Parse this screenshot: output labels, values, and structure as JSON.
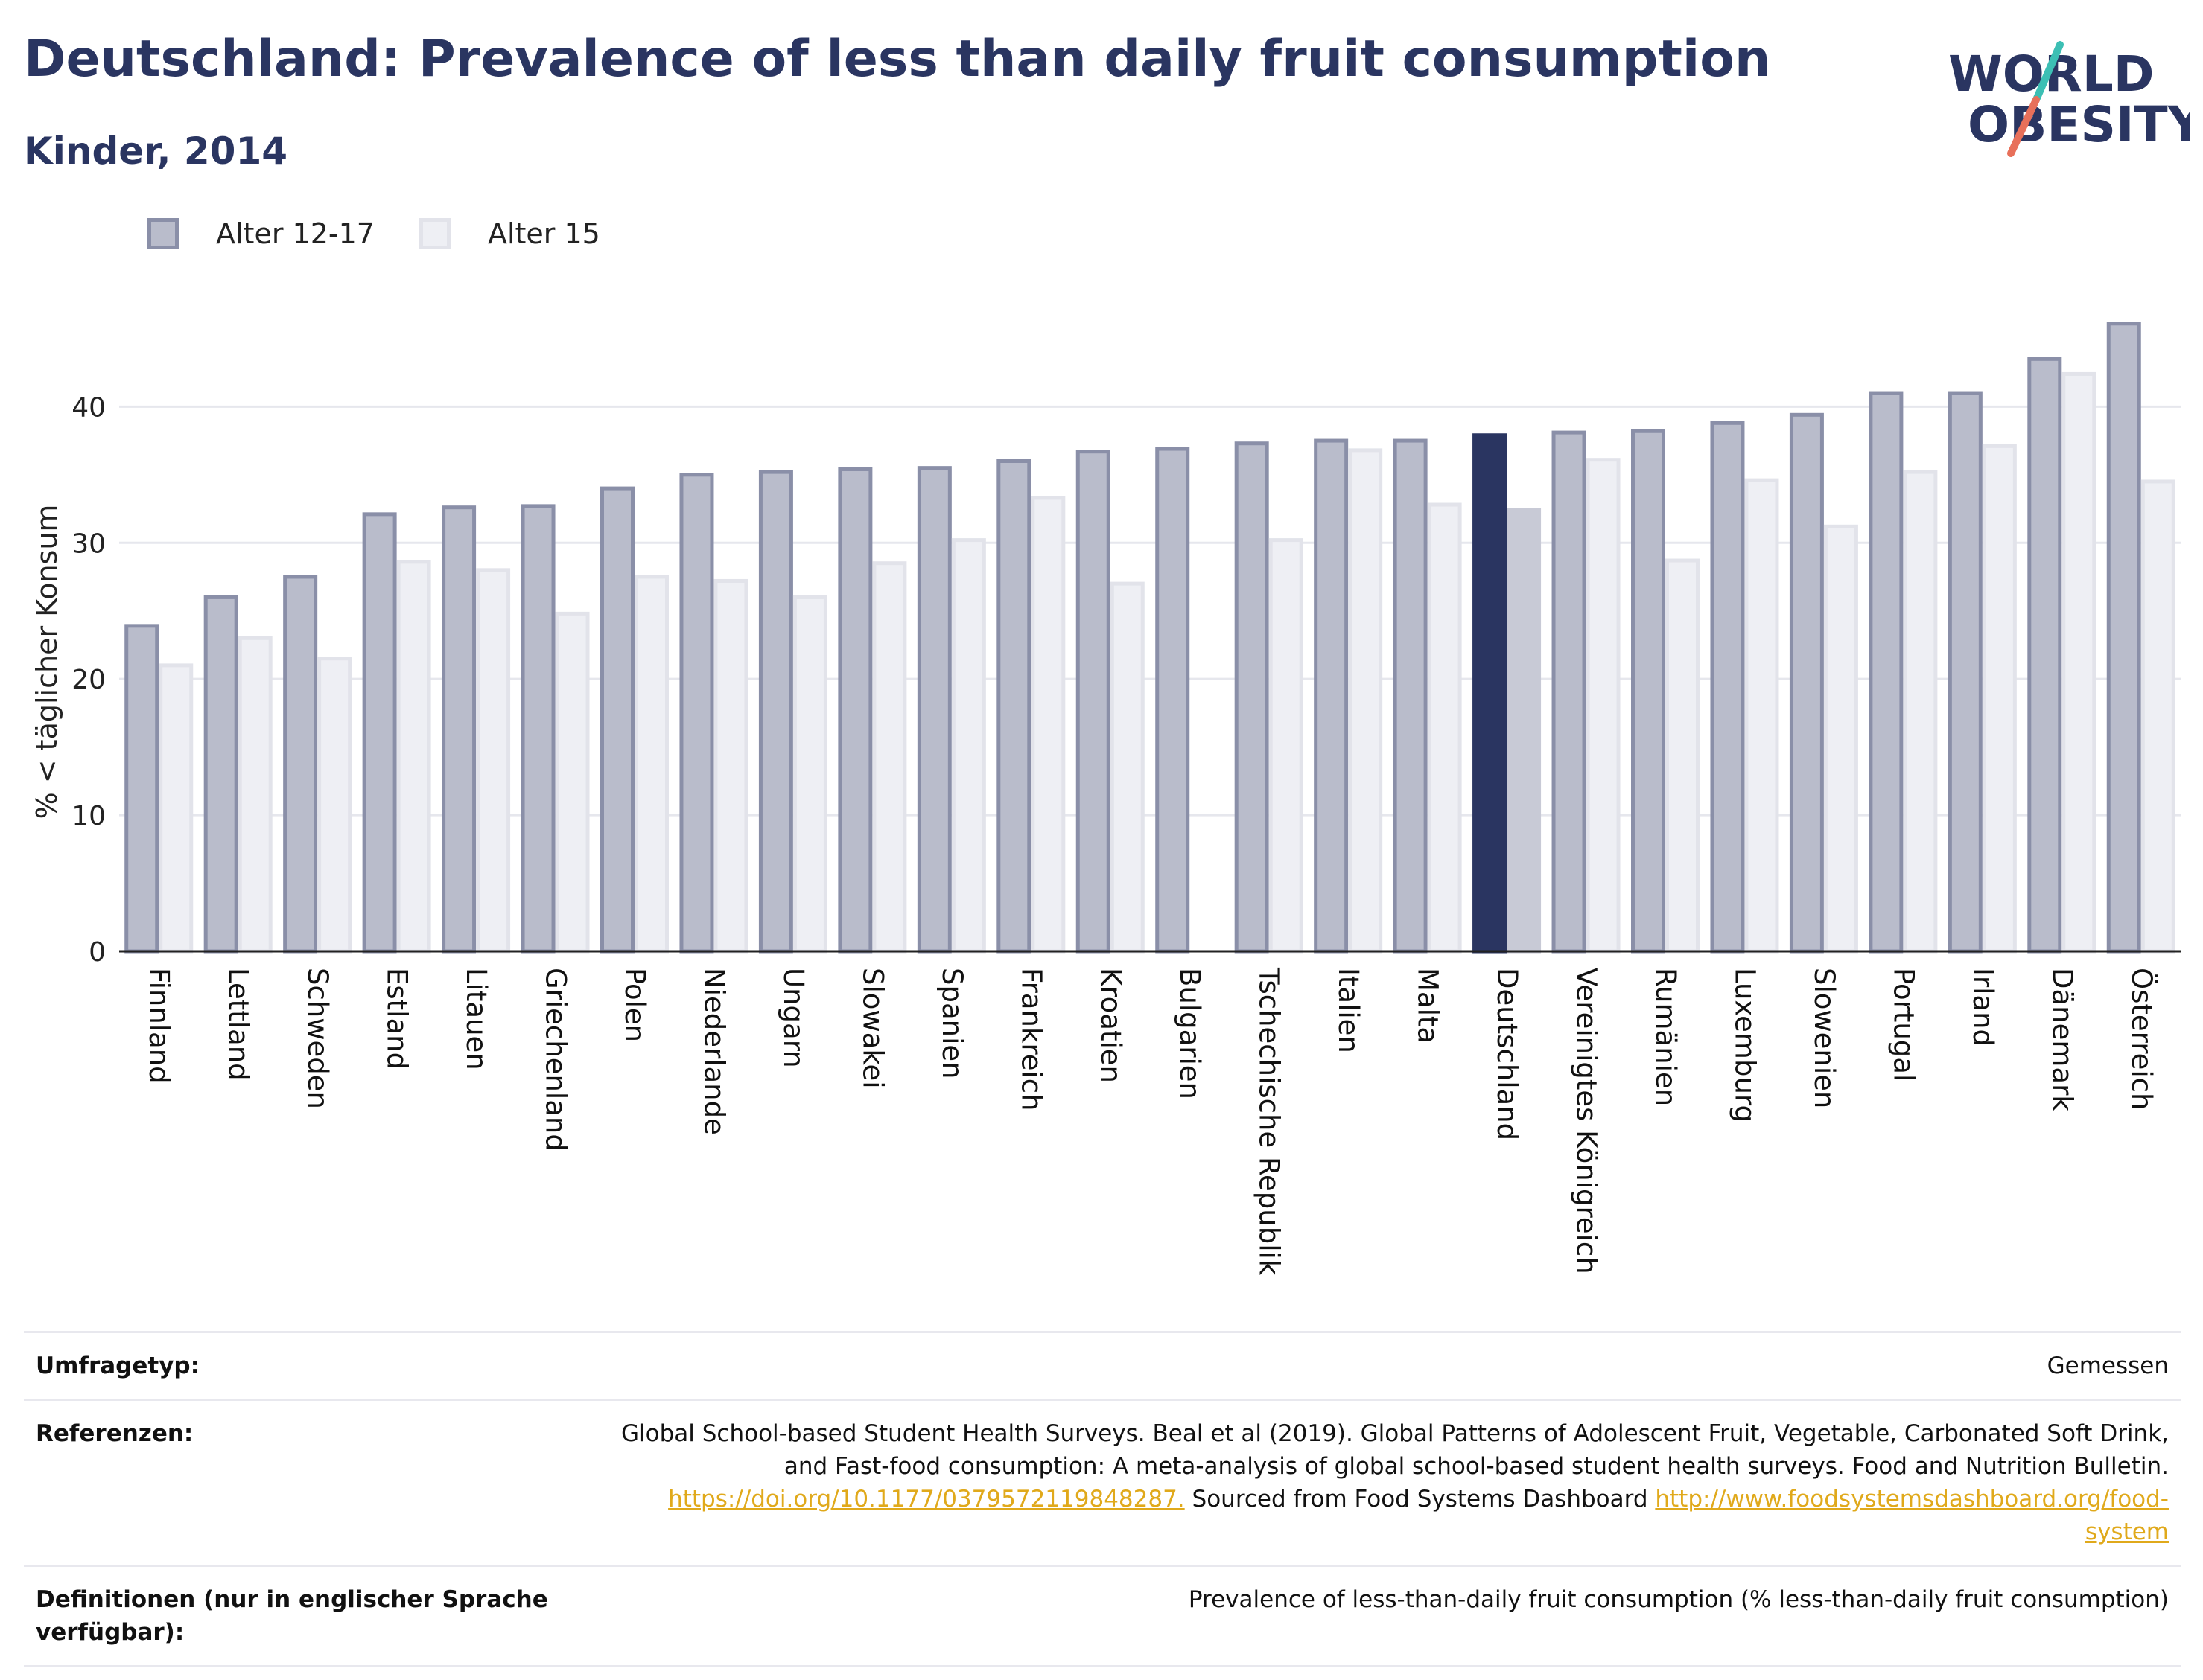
{
  "header": {
    "title": "Deutschland: Prevalence of less than daily fruit consumption",
    "subtitle": "Kinder, 2014",
    "logo_line1": "WORLD",
    "logo_line2": "OBESITY"
  },
  "colors": {
    "series1_fill": "#b9bccb",
    "series1_stroke": "#8a8fa8",
    "series2_fill": "#eeeff4",
    "series2_stroke": "#e2e3ea",
    "highlight1": "#2a3561",
    "highlight2": "#c8cad6",
    "title": "#2a3561",
    "logo_teal": "#3cbfb4",
    "logo_coral": "#e8705a"
  },
  "chart_data": {
    "type": "bar",
    "ylabel": "% < täglicher Konsum",
    "ylim": [
      0,
      48
    ],
    "yticks": [
      0,
      10,
      20,
      30,
      40
    ],
    "grid": true,
    "legend_position": "top-left",
    "highlight": "Deutschland",
    "categories": [
      "Finnland",
      "Lettland",
      "Schweden",
      "Estland",
      "Litauen",
      "Griechenland",
      "Polen",
      "Niederlande",
      "Ungarn",
      "Slowakei",
      "Spanien",
      "Frankreich",
      "Kroatien",
      "Bulgarien",
      "Tschechische Republik",
      "Italien",
      "Malta",
      "Deutschland",
      "Vereinigtes Königreich",
      "Rumänien",
      "Luxemburg",
      "Slowenien",
      "Portugal",
      "Irland",
      "Dänemark",
      "Österreich"
    ],
    "series": [
      {
        "name": "Alter 12-17",
        "values": [
          23.9,
          26.0,
          27.5,
          32.1,
          32.6,
          32.7,
          34.0,
          35.0,
          35.2,
          35.4,
          35.5,
          36.0,
          36.7,
          36.9,
          37.3,
          37.5,
          37.5,
          37.9,
          38.1,
          38.2,
          38.8,
          39.4,
          41.0,
          41.0,
          43.5,
          46.1
        ]
      },
      {
        "name": "Alter 15",
        "values": [
          21.0,
          23.0,
          21.5,
          28.6,
          28.0,
          24.8,
          27.5,
          27.2,
          26.0,
          28.5,
          30.2,
          33.3,
          27.0,
          null,
          30.2,
          36.8,
          32.8,
          32.4,
          36.1,
          28.7,
          34.6,
          31.2,
          35.2,
          37.1,
          42.4,
          34.5
        ]
      }
    ]
  },
  "footer": {
    "survey_label": "Umfragetyp:",
    "survey_value": "Gemessen",
    "references_label": "Referenzen:",
    "references_text": "Global School-based Student Health Surveys. Beal et al (2019). Global Patterns of Adolescent Fruit, Vegetable, Carbonated Soft Drink, and Fast-food consumption: A meta-analysis of global school-based student health surveys. Food and Nutrition Bulletin.",
    "references_link1": "https://doi.org/10.1177/0379572119848287.",
    "references_mid": " Sourced from Food Systems Dashboard ",
    "references_link2": "http://www.foodsystemsdashboard.org/food-system",
    "definitions_label": "Definitionen (nur in englischer Sprache verfügbar):",
    "definitions_value": "Prevalence of less-than-daily fruit consumption (% less-than-daily fruit consumption)"
  }
}
